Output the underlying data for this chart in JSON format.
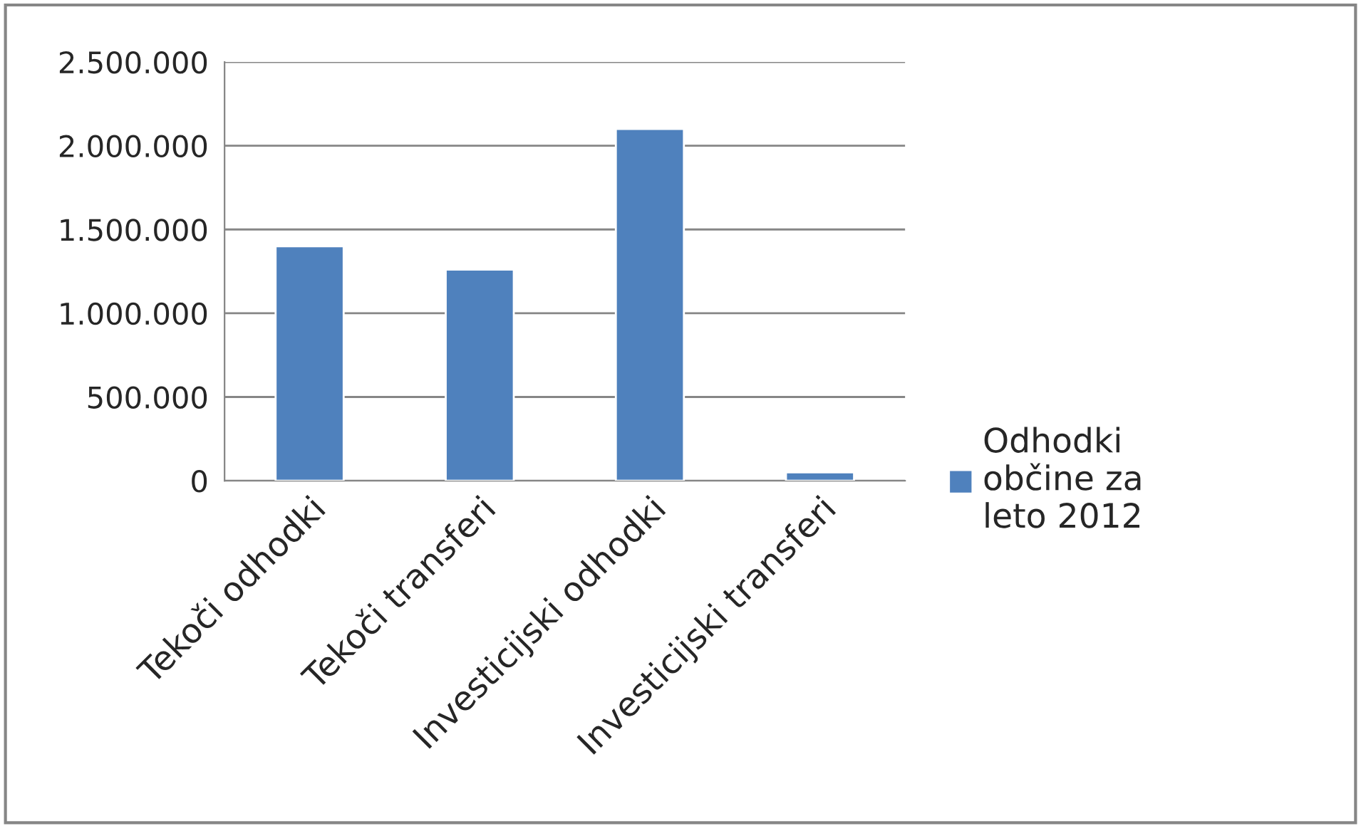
{
  "chart_data": {
    "type": "bar",
    "categories": [
      "Tekoči odhodki",
      "Tekoči transferi",
      "Investicijski odhodki",
      "Investicijski transferi"
    ],
    "series": [
      {
        "name": "Odhodki občine za leto 2012",
        "color": "#4f81bd",
        "values": [
          1400000,
          1260000,
          2100000,
          50000
        ]
      }
    ],
    "ylim": [
      0,
      2500000
    ],
    "yticks": [
      {
        "value": 0,
        "label": "0"
      },
      {
        "value": 500000,
        "label": "500.000"
      },
      {
        "value": 1000000,
        "label": "1.000.000"
      },
      {
        "value": 1500000,
        "label": "1.500.000"
      },
      {
        "value": 2000000,
        "label": "2.000.000"
      },
      {
        "value": 2500000,
        "label": "2.500.000"
      }
    ],
    "grid": "y",
    "legend": "right"
  }
}
